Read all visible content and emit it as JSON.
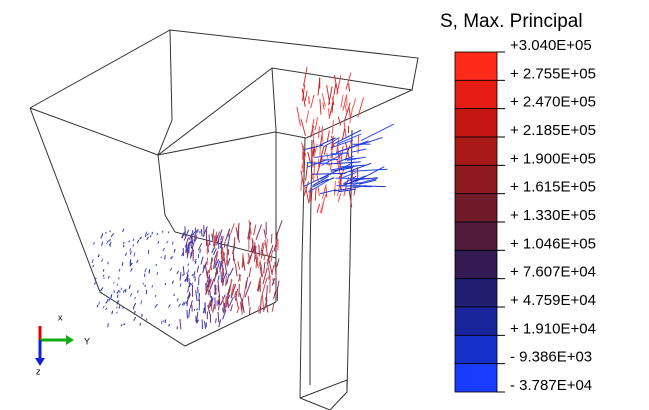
{
  "legend": {
    "title": "S, Max. Principal",
    "labels": [
      "+3.040E+05",
      "+ 2.755E+05",
      "+ 2.470E+05",
      "+ 2.185E+05",
      "+ 1.900E+05",
      "+ 1.615E+05",
      "+ 1.330E+05",
      "+ 1.046E+05",
      "+ 7.607E+04",
      "+ 4.759E+04",
      "+ 1.910E+04",
      "- 9.386E+03",
      "- 3.787E+04"
    ]
  },
  "triad": {
    "x": "x",
    "y": "Y",
    "z": "z"
  }
}
